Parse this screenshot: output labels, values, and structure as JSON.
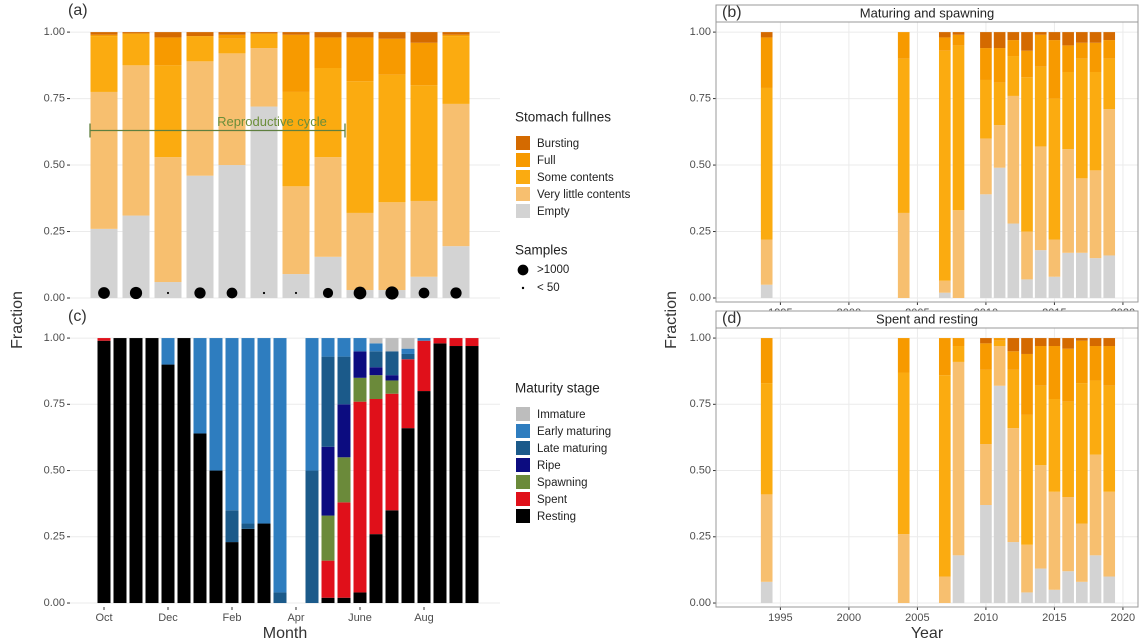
{
  "chart_data": [
    {
      "type": "bar",
      "stacked": true,
      "label": "(a)",
      "ylabel": "Fraction",
      "annotation": "Reproductive cycle",
      "legend_title": "Stomach fullnes",
      "legend": "right",
      "grid": true,
      "ylim": [
        -0.015,
        1.038
      ],
      "yticks": [
        {
          "value": 0,
          "label": "0.00"
        },
        {
          "value": 0.25,
          "label": "0.25"
        },
        {
          "value": 0.5,
          "label": "0.50"
        },
        {
          "value": 0.75,
          "label": "0.75"
        },
        {
          "value": 1,
          "label": "1.00"
        }
      ],
      "series": [
        {
          "name": "Bursting",
          "color": "#d46a00",
          "values": [
            0.01,
            0.005,
            0.02,
            0.015,
            0.01,
            0.005,
            0.01,
            0.02,
            0.02,
            0.025,
            0.04,
            0.01
          ]
        },
        {
          "name": "Full",
          "color": "#f79a00",
          "values": [
            0.005,
            0,
            0.105,
            0,
            0.015,
            0,
            0.215,
            0.115,
            0.165,
            0.135,
            0.16,
            0.005
          ]
        },
        {
          "name": "Some contents",
          "color": "#fbab10",
          "values": [
            0.21,
            0.12,
            0.345,
            0.095,
            0.055,
            0.055,
            0.355,
            0.335,
            0.495,
            0.48,
            0.435,
            0.255
          ]
        },
        {
          "name": "Very little contents",
          "color": "#f7bf6f",
          "values": [
            0.515,
            0.565,
            0.47,
            0.43,
            0.42,
            0.22,
            0.33,
            0.375,
            0.29,
            0.33,
            0.285,
            0.535
          ]
        },
        {
          "name": "Empty",
          "color": "#d3d3d3",
          "values": [
            0.26,
            0.31,
            0.06,
            0.46,
            0.5,
            0.72,
            0.09,
            0.155,
            0.03,
            0.03,
            0.08,
            0.195
          ]
        }
      ],
      "samples": {
        "title": "Samples",
        "values": [
          1200,
          1300,
          40,
          1100,
          1000,
          45,
          40,
          900,
          1400,
          1500,
          1000,
          1100
        ],
        "legend": [
          {
            "value": 1000,
            "label": ">1000"
          },
          {
            "value": 50,
            "label": "< 50"
          }
        ]
      }
    },
    {
      "type": "bar",
      "stacked": true,
      "label": "(b)",
      "title": "Maturing and spawning",
      "ylabel": "Fraction",
      "grid": true,
      "x": [
        1994,
        2004,
        2007,
        2008,
        2010,
        2011,
        2012,
        2013,
        2014,
        2015,
        2016,
        2017,
        2018,
        2019
      ],
      "xlim": [
        1990.3,
        2021.1
      ],
      "xticks": [
        1995,
        2000,
        2005,
        2010,
        2015,
        2020
      ],
      "ylim": [
        -0.015,
        1.038
      ],
      "yticks": [
        {
          "value": 0,
          "label": "0.00"
        },
        {
          "value": 0.25,
          "label": "0.25"
        },
        {
          "value": 0.5,
          "label": "0.50"
        },
        {
          "value": 0.75,
          "label": "0.75"
        },
        {
          "value": 1,
          "label": "1.00"
        }
      ],
      "series": [
        {
          "color": "#d46a00",
          "values": [
            0.02,
            0,
            0.02,
            0.01,
            0.06,
            0.06,
            0.03,
            0.07,
            0.01,
            0.03,
            0.05,
            0.04,
            0.04,
            0.03
          ]
        },
        {
          "color": "#f79a00",
          "values": [
            0.19,
            0.1,
            0.05,
            0.04,
            0.12,
            0.13,
            0.06,
            0.1,
            0.12,
            0.22,
            0.1,
            0.06,
            0.11,
            0.07
          ]
        },
        {
          "color": "#fbab10",
          "values": [
            0.57,
            0.58,
            0.865,
            0.62,
            0.22,
            0.16,
            0.15,
            0.58,
            0.3,
            0.53,
            0.29,
            0.45,
            0.37,
            0.19
          ]
        },
        {
          "color": "#f7bf6f",
          "values": [
            0.17,
            0.32,
            0.045,
            0.33,
            0.21,
            0.16,
            0.48,
            0.18,
            0.39,
            0.14,
            0.39,
            0.28,
            0.33,
            0.55
          ]
        },
        {
          "color": "#d3d3d3",
          "values": [
            0.05,
            0,
            0.02,
            0,
            0.39,
            0.49,
            0.28,
            0.07,
            0.18,
            0.08,
            0.17,
            0.17,
            0.15,
            0.16
          ]
        }
      ]
    },
    {
      "type": "bar",
      "stacked": true,
      "label": "(c)",
      "xlabel": "Month",
      "legend_title": "Maturity stage",
      "legend": "right",
      "grid": true,
      "categories": [
        "Oct",
        null,
        null,
        null,
        "Dec",
        null,
        null,
        null,
        "Feb",
        null,
        null,
        null,
        "Apr",
        null,
        null,
        null,
        "June",
        null,
        null,
        null,
        "Aug",
        null,
        null,
        null
      ],
      "ylim": [
        -0.015,
        1.038
      ],
      "yticks": [
        {
          "value": 0,
          "label": "0.00"
        },
        {
          "value": 0.25,
          "label": "0.25"
        },
        {
          "value": 0.5,
          "label": "0.50"
        },
        {
          "value": 0.75,
          "label": "0.75"
        },
        {
          "value": 1,
          "label": "1.00"
        }
      ],
      "series": [
        {
          "name": "Immature",
          "color": "#bdbdbd",
          "values": [
            0,
            0,
            0,
            0,
            0,
            0,
            0,
            0,
            0,
            0,
            0,
            0,
            null,
            0,
            0,
            0,
            0,
            0.02,
            0.05,
            0.04,
            0,
            0,
            0,
            0
          ]
        },
        {
          "name": "Early maturing",
          "color": "#2e7dbf",
          "values": [
            0,
            0,
            0,
            0,
            0.1,
            0,
            0.36,
            0.5,
            0.65,
            0.7,
            0.7,
            0.96,
            null,
            0.5,
            0.07,
            0.07,
            0.05,
            0.03,
            0,
            0.02,
            0.01,
            0,
            0,
            0
          ]
        },
        {
          "name": "Late maturing",
          "color": "#1b5a8a",
          "values": [
            0,
            0,
            0,
            0,
            0,
            0,
            0,
            0,
            0.12,
            0.02,
            0,
            0.04,
            null,
            0.5,
            0.34,
            0.18,
            0,
            0.06,
            0.09,
            0.02,
            0,
            0,
            0,
            0
          ]
        },
        {
          "name": "Ripe",
          "color": "#0c0c80",
          "values": [
            0,
            0,
            0,
            0,
            0,
            0,
            0,
            0,
            0,
            0,
            0,
            0,
            null,
            0,
            0.26,
            0.2,
            0.1,
            0.03,
            0.02,
            0,
            0,
            0,
            0,
            0
          ]
        },
        {
          "name": "Spawning",
          "color": "#6b8a3a",
          "values": [
            0,
            0,
            0,
            0,
            0,
            0,
            0,
            0,
            0,
            0,
            0,
            0,
            null,
            0,
            0.17,
            0.17,
            0.09,
            0.09,
            0.05,
            0,
            0,
            0,
            0,
            0
          ]
        },
        {
          "name": "Spent",
          "color": "#e0101a",
          "values": [
            0.01,
            0,
            0,
            0,
            0,
            0,
            0,
            0,
            0,
            0,
            0,
            0,
            null,
            0,
            0.14,
            0.36,
            0.72,
            0.51,
            0.44,
            0.26,
            0.19,
            0.02,
            0.03,
            0.03
          ]
        },
        {
          "name": "Resting",
          "color": "#000000",
          "values": [
            0.99,
            1,
            1,
            1,
            0.9,
            1,
            0.64,
            0.5,
            0.23,
            0.28,
            0.3,
            0,
            null,
            0,
            0.02,
            0.02,
            0.04,
            0.26,
            0.35,
            0.66,
            0.8,
            0.98,
            0.97,
            0.97
          ]
        }
      ]
    },
    {
      "type": "bar",
      "stacked": true,
      "label": "(d)",
      "title": "Spent and resting",
      "xlabel": "Year",
      "grid": true,
      "x": [
        1994,
        2004,
        2007,
        2008,
        2010,
        2011,
        2012,
        2013,
        2014,
        2015,
        2016,
        2017,
        2018,
        2019
      ],
      "xlim": [
        1990.3,
        2021.1
      ],
      "xticks": [
        1995,
        2000,
        2005,
        2010,
        2015,
        2020
      ],
      "ylim": [
        -0.015,
        1.038
      ],
      "yticks": [
        {
          "value": 0,
          "label": "0.00"
        },
        {
          "value": 0.25,
          "label": "0.25"
        },
        {
          "value": 0.5,
          "label": "0.50"
        },
        {
          "value": 0.75,
          "label": "0.75"
        },
        {
          "value": 1,
          "label": "1.00"
        }
      ],
      "series": [
        {
          "color": "#d46a00",
          "values": [
            0,
            0,
            0,
            0,
            0.02,
            0,
            0.05,
            0.06,
            0.03,
            0.03,
            0.04,
            0.01,
            0.03,
            0.03
          ]
        },
        {
          "color": "#f79a00",
          "values": [
            0.17,
            0.13,
            0.14,
            0.03,
            0.1,
            0.01,
            0.07,
            0.23,
            0.15,
            0.2,
            0.2,
            0.16,
            0.13,
            0.15
          ]
        },
        {
          "color": "#fbab10",
          "values": [
            0.42,
            0.61,
            0.76,
            0.06,
            0.28,
            0.02,
            0.22,
            0.49,
            0.3,
            0.35,
            0.36,
            0.53,
            0.28,
            0.4
          ]
        },
        {
          "color": "#f7bf6f",
          "values": [
            0.33,
            0.26,
            0.1,
            0.73,
            0.23,
            0.15,
            0.43,
            0.18,
            0.39,
            0.37,
            0.28,
            0.22,
            0.38,
            0.32
          ]
        },
        {
          "color": "#d3d3d3",
          "values": [
            0.08,
            0,
            0,
            0.18,
            0.37,
            0.82,
            0.23,
            0.04,
            0.13,
            0.05,
            0.12,
            0.08,
            0.18,
            0.1
          ]
        }
      ]
    }
  ]
}
